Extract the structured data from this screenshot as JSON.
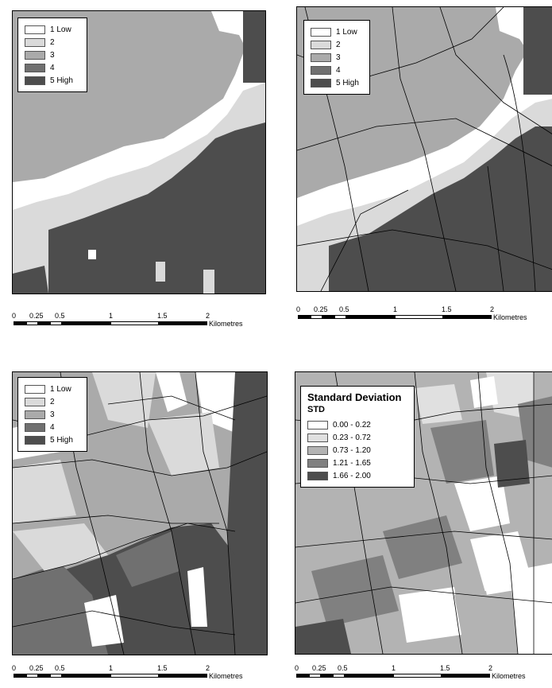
{
  "legend_classes": {
    "colors": [
      "#ffffff",
      "#dadada",
      "#aaaaaa",
      "#707070",
      "#4d4d4d"
    ],
    "items": [
      {
        "label": "1 Low"
      },
      {
        "label": "2"
      },
      {
        "label": "3"
      },
      {
        "label": "4"
      },
      {
        "label": "5 High"
      }
    ]
  },
  "legend_std": {
    "title": "Standard Deviation",
    "subtitle": "STD",
    "colors": [
      "#ffffff",
      "#e0e0e0",
      "#b3b3b3",
      "#808080",
      "#4d4d4d"
    ],
    "items": [
      {
        "label": "0.00 - 0.22"
      },
      {
        "label": "0.23 - 0.72"
      },
      {
        "label": "0.73 - 1.20"
      },
      {
        "label": "1.21 - 1.65"
      },
      {
        "label": "1.66 - 2.00"
      }
    ]
  },
  "scalebar": {
    "ticks": [
      "0",
      "0.25",
      "0.5",
      "1",
      "1.5",
      "2"
    ],
    "unit": "Kilometres"
  },
  "panels": [
    {
      "legend": "classes"
    },
    {
      "legend": "classes"
    },
    {
      "legend": "classes"
    },
    {
      "legend": "std"
    }
  ]
}
